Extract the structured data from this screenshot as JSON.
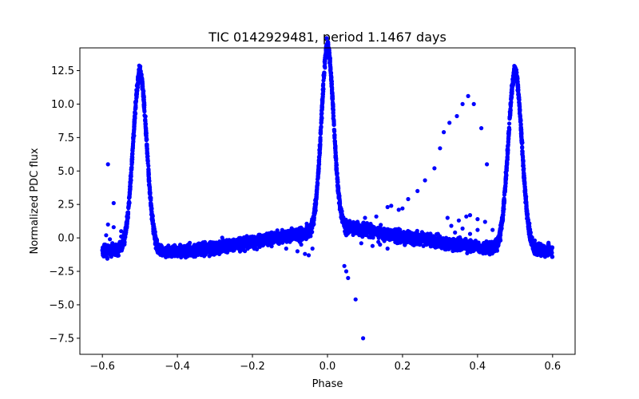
{
  "chart_data": {
    "type": "scatter",
    "title": "TIC 0142929481, period 1.1467 days",
    "xlabel": "Phase",
    "ylabel": "Normalized PDC flux",
    "xlim": [
      -0.66,
      0.66
    ],
    "ylim": [
      -8.7,
      14.2
    ],
    "xticks": [
      -0.6,
      -0.4,
      -0.2,
      0.0,
      0.2,
      0.4,
      0.6
    ],
    "xtick_labels": [
      "−0.6",
      "−0.4",
      "−0.2",
      "0.0",
      "0.2",
      "0.4",
      "0.6"
    ],
    "yticks": [
      -7.5,
      -5.0,
      -2.5,
      0.0,
      2.5,
      5.0,
      7.5,
      10.0,
      12.5
    ],
    "ytick_labels": [
      "−7.5",
      "−5.0",
      "−2.5",
      "0.0",
      "2.5",
      "5.0",
      "7.5",
      "10.0",
      "12.5"
    ],
    "grid": false,
    "marker_color": "#0000ff",
    "series": [
      {
        "baseline_curve": [
          [
            -0.6,
            -0.9
          ],
          [
            -0.56,
            -0.9
          ],
          [
            -0.45,
            -1.0
          ],
          [
            -0.42,
            -1.05
          ],
          [
            -0.35,
            -0.9
          ],
          [
            -0.3,
            -0.7
          ],
          [
            -0.2,
            -0.3
          ],
          [
            -0.1,
            0.2
          ],
          [
            -0.05,
            0.4
          ],
          [
            -0.03,
            0.6
          ],
          [
            0.04,
            0.9
          ],
          [
            0.1,
            0.6
          ],
          [
            0.2,
            0.1
          ],
          [
            0.3,
            -0.3
          ],
          [
            0.4,
            -0.65
          ],
          [
            0.45,
            -0.8
          ],
          [
            0.55,
            -0.95
          ],
          [
            0.6,
            -0.9
          ]
        ],
        "baseline_scatter": 0.32,
        "peaks": [
          {
            "center": -0.5,
            "amplitude": 13.3,
            "sigma": 0.018
          },
          {
            "center": 0.0,
            "amplitude": 13.6,
            "sigma": 0.016
          },
          {
            "center": 0.5,
            "amplitude": 13.3,
            "sigma": 0.018
          }
        ],
        "outliers": [
          [
            -0.585,
            5.5
          ],
          [
            -0.57,
            2.6
          ],
          [
            -0.585,
            1.0
          ],
          [
            -0.57,
            0.8
          ],
          [
            -0.55,
            0.5
          ],
          [
            -0.55,
            0.1
          ],
          [
            -0.59,
            0.2
          ],
          [
            -0.58,
            -0.1
          ],
          [
            -0.11,
            -0.8
          ],
          [
            -0.08,
            -1.0
          ],
          [
            -0.06,
            -1.2
          ],
          [
            -0.07,
            -0.5
          ],
          [
            -0.05,
            -1.3
          ],
          [
            -0.04,
            -0.8
          ],
          [
            0.045,
            -2.1
          ],
          [
            0.05,
            -2.5
          ],
          [
            0.055,
            -3.0
          ],
          [
            0.075,
            -4.6
          ],
          [
            0.095,
            -7.5
          ],
          [
            0.05,
            0.2
          ],
          [
            0.08,
            1.2
          ],
          [
            0.1,
            1.5
          ],
          [
            0.13,
            1.6
          ],
          [
            0.16,
            2.3
          ],
          [
            0.17,
            2.4
          ],
          [
            0.19,
            2.1
          ],
          [
            0.2,
            2.2
          ],
          [
            0.215,
            2.9
          ],
          [
            0.24,
            3.5
          ],
          [
            0.26,
            4.3
          ],
          [
            0.285,
            5.2
          ],
          [
            0.3,
            6.7
          ],
          [
            0.31,
            7.9
          ],
          [
            0.325,
            8.6
          ],
          [
            0.345,
            9.1
          ],
          [
            0.36,
            10.0
          ],
          [
            0.375,
            10.6
          ],
          [
            0.39,
            10.0
          ],
          [
            0.41,
            8.2
          ],
          [
            0.425,
            5.5
          ],
          [
            0.32,
            1.5
          ],
          [
            0.35,
            1.3
          ],
          [
            0.37,
            1.6
          ],
          [
            0.38,
            1.7
          ],
          [
            0.4,
            1.4
          ],
          [
            0.42,
            1.2
          ],
          [
            0.33,
            0.9
          ],
          [
            0.36,
            0.7
          ],
          [
            0.38,
            0.3
          ],
          [
            0.4,
            0.6
          ],
          [
            0.34,
            0.4
          ],
          [
            0.09,
            -0.4
          ],
          [
            0.12,
            -0.6
          ],
          [
            0.14,
            -0.5
          ],
          [
            0.16,
            -0.8
          ],
          [
            0.46,
            0.5
          ],
          [
            0.44,
            0.6
          ]
        ]
      }
    ]
  }
}
